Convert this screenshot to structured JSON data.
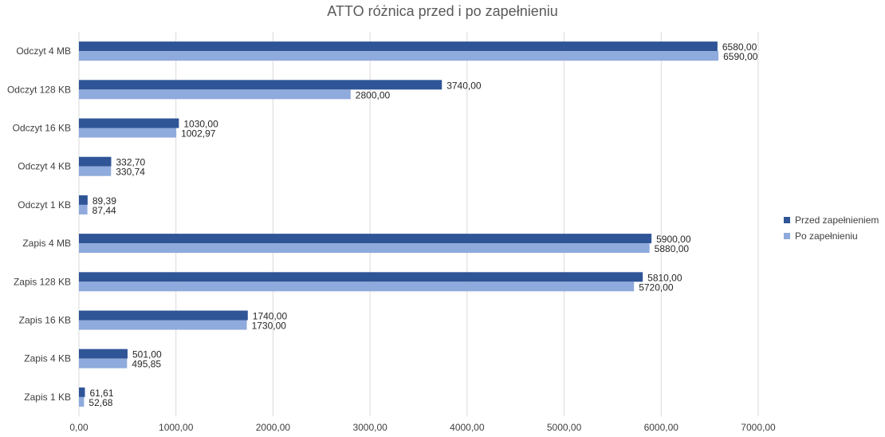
{
  "chart_data": {
    "type": "bar",
    "orientation": "horizontal",
    "title": "ATTO różnica przed i po zapełnieniu",
    "xlabel": "",
    "ylabel": "",
    "xlim": [
      0,
      7000
    ],
    "xticks": [
      "0,00",
      "1000,00",
      "2000,00",
      "3000,00",
      "4000,00",
      "5000,00",
      "6000,00",
      "7000,00"
    ],
    "grid": true,
    "legend_position": "right",
    "categories": [
      "Odczyt 4 MB",
      "Odczyt 128 KB",
      "Odczyt 16 KB",
      "Odczyt 4 KB",
      "Odczyt 1 KB",
      "Zapis 4 MB",
      "Zapis 128 KB",
      "Zapis 16 KB",
      "Zapis 4 KB",
      "Zapis 1 KB"
    ],
    "series": [
      {
        "name": "Przed zapełnieniem",
        "color": "#2f5597",
        "values": [
          6580,
          3740,
          1030,
          332.7,
          89.39,
          5900,
          5810,
          1740,
          501,
          61.61
        ],
        "labels": [
          "6580,00",
          "3740,00",
          "1030,00",
          "332,70",
          "89,39",
          "5900,00",
          "5810,00",
          "1740,00",
          "501,00",
          "61,61"
        ]
      },
      {
        "name": "Po zapełnieniu",
        "color": "#8faadc",
        "values": [
          6590,
          2800,
          1002.97,
          330.74,
          87.44,
          5880,
          5720,
          1730,
          495.85,
          52.68
        ],
        "labels": [
          "6590,00",
          "2800,00",
          "1002,97",
          "330,74",
          "87,44",
          "5880,00",
          "5720,00",
          "1730,00",
          "495,85",
          "52,68"
        ]
      }
    ]
  }
}
